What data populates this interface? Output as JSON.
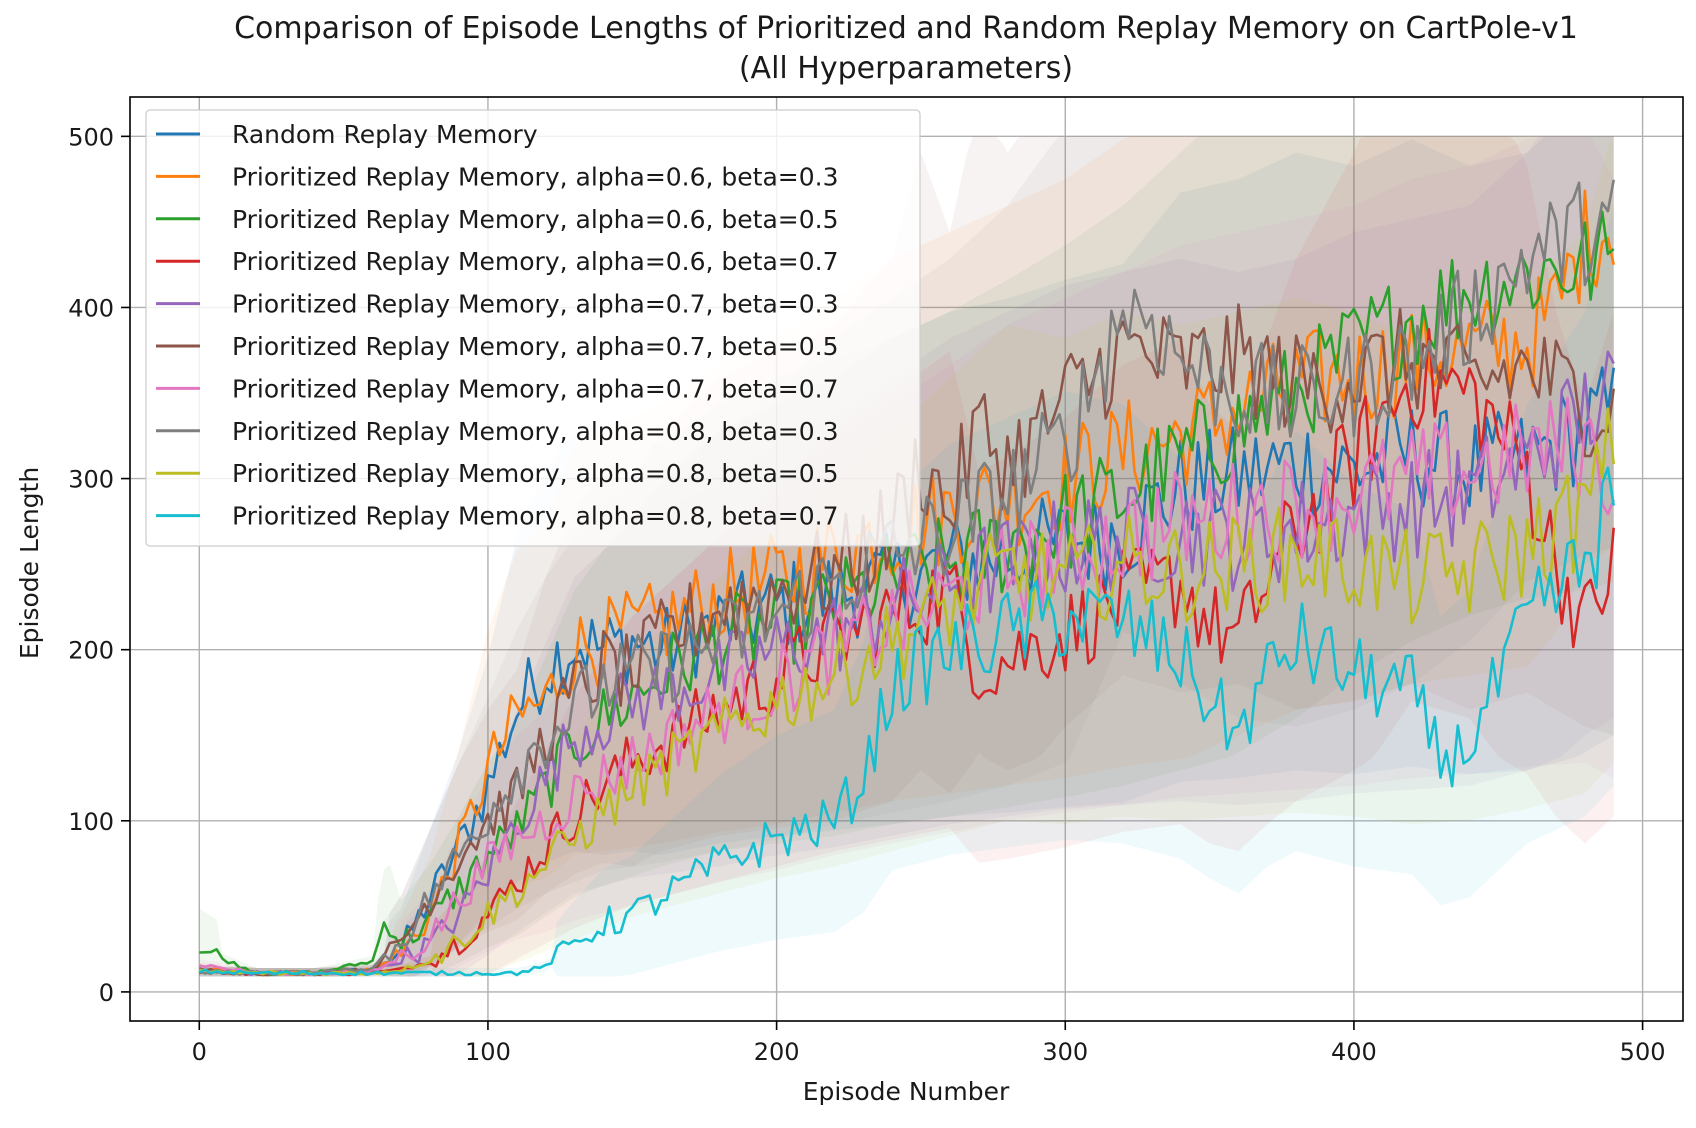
{
  "chart_data": {
    "type": "line",
    "title": "Comparison of Episode Lengths of Prioritized and Random Replay Memory on CartPole-v1",
    "subtitle": "(All Hyperparameters)",
    "xlabel": "Episode Number",
    "ylabel": "Episode Length",
    "xlim": [
      -24,
      514
    ],
    "ylim": [
      -17,
      523
    ],
    "xticks": [
      0,
      100,
      200,
      300,
      400,
      500
    ],
    "yticks": [
      0,
      100,
      200,
      300,
      400,
      500
    ],
    "grid": true,
    "legend_position": "upper-left",
    "shaded_bands": true,
    "series": [
      {
        "name": "Random Replay Memory",
        "color": "#1f77b4",
        "x": [
          0,
          20,
          40,
          60,
          70,
          80,
          90,
          100,
          110,
          120,
          130,
          140,
          150,
          160,
          180,
          200,
          220,
          240,
          260,
          280,
          300,
          320,
          340,
          360,
          380,
          400,
          420,
          440,
          460,
          480,
          490
        ],
        "y": [
          12,
          11,
          11,
          13,
          25,
          55,
          85,
          120,
          165,
          190,
          205,
          200,
          205,
          200,
          215,
          225,
          232,
          240,
          250,
          255,
          262,
          268,
          295,
          300,
          310,
          305,
          315,
          305,
          310,
          330,
          340
        ]
      },
      {
        "name": "Prioritized Replay Memory, alpha=0.6, beta=0.3",
        "color": "#ff7f0e",
        "x": [
          0,
          20,
          40,
          60,
          70,
          80,
          90,
          100,
          110,
          120,
          130,
          140,
          150,
          160,
          180,
          200,
          220,
          240,
          260,
          280,
          300,
          320,
          340,
          360,
          380,
          400,
          420,
          440,
          460,
          470,
          480,
          490
        ],
        "y": [
          14,
          11,
          11,
          13,
          22,
          45,
          85,
          130,
          160,
          170,
          200,
          205,
          210,
          215,
          230,
          240,
          255,
          270,
          280,
          290,
          300,
          315,
          325,
          340,
          355,
          360,
          370,
          375,
          380,
          400,
          440,
          450
        ]
      },
      {
        "name": "Prioritized Replay Memory, alpha=0.6, beta=0.5",
        "color": "#2ca02c",
        "x": [
          0,
          20,
          40,
          60,
          65,
          70,
          80,
          90,
          100,
          110,
          120,
          130,
          140,
          160,
          180,
          200,
          220,
          240,
          260,
          280,
          300,
          320,
          340,
          360,
          380,
          400,
          420,
          440,
          460,
          480,
          490
        ],
        "y": [
          25,
          11,
          11,
          18,
          45,
          28,
          42,
          60,
          80,
          95,
          120,
          145,
          160,
          185,
          205,
          215,
          225,
          240,
          250,
          262,
          275,
          290,
          310,
          330,
          350,
          375,
          395,
          410,
          420,
          425,
          430
        ]
      },
      {
        "name": "Prioritized Replay Memory, alpha=0.6, beta=0.7",
        "color": "#d62728",
        "x": [
          0,
          20,
          40,
          60,
          70,
          80,
          90,
          100,
          110,
          120,
          130,
          140,
          150,
          160,
          180,
          200,
          220,
          240,
          260,
          270,
          280,
          300,
          320,
          340,
          350,
          360,
          370,
          380,
          400,
          420,
          440,
          460,
          470,
          480,
          490
        ],
        "y": [
          12,
          11,
          11,
          11,
          13,
          18,
          30,
          45,
          65,
          85,
          105,
          120,
          135,
          145,
          165,
          185,
          205,
          220,
          235,
          190,
          195,
          210,
          230,
          240,
          215,
          205,
          240,
          270,
          310,
          360,
          350,
          305,
          250,
          215,
          250
        ]
      },
      {
        "name": "Prioritized Replay Memory, alpha=0.7, beta=0.3",
        "color": "#9467bd",
        "x": [
          0,
          20,
          40,
          60,
          70,
          80,
          90,
          100,
          110,
          120,
          130,
          140,
          150,
          160,
          180,
          200,
          220,
          240,
          260,
          280,
          300,
          320,
          340,
          360,
          380,
          400,
          420,
          440,
          460,
          480,
          490
        ],
        "y": [
          12,
          11,
          11,
          12,
          18,
          28,
          45,
          70,
          100,
          125,
          150,
          160,
          170,
          175,
          185,
          200,
          210,
          225,
          240,
          250,
          260,
          265,
          270,
          265,
          270,
          280,
          285,
          290,
          310,
          340,
          350
        ]
      },
      {
        "name": "Prioritized Replay Memory, alpha=0.7, beta=0.5",
        "color": "#8c564b",
        "x": [
          0,
          20,
          40,
          60,
          70,
          80,
          90,
          100,
          110,
          120,
          130,
          140,
          150,
          160,
          180,
          200,
          220,
          240,
          250,
          260,
          270,
          280,
          290,
          300,
          310,
          320,
          330,
          340,
          360,
          380,
          400,
          420,
          440,
          460,
          480,
          490
        ],
        "y": [
          13,
          11,
          11,
          13,
          30,
          55,
          80,
          100,
          115,
          150,
          175,
          190,
          185,
          205,
          225,
          235,
          245,
          270,
          310,
          280,
          330,
          310,
          325,
          345,
          360,
          375,
          370,
          365,
          370,
          355,
          360,
          370,
          355,
          365,
          345,
          340
        ]
      },
      {
        "name": "Prioritized Replay Memory, alpha=0.7, beta=0.7",
        "color": "#e377c2",
        "x": [
          0,
          20,
          40,
          60,
          70,
          80,
          90,
          100,
          110,
          120,
          130,
          140,
          150,
          160,
          180,
          200,
          220,
          240,
          260,
          280,
          300,
          320,
          340,
          360,
          380,
          400,
          420,
          440,
          460,
          480,
          490
        ],
        "y": [
          16,
          11,
          11,
          12,
          20,
          32,
          55,
          75,
          90,
          100,
          115,
          125,
          135,
          145,
          165,
          180,
          200,
          215,
          230,
          245,
          255,
          265,
          275,
          280,
          285,
          290,
          300,
          305,
          315,
          320,
          300
        ]
      },
      {
        "name": "Prioritized Replay Memory, alpha=0.8, beta=0.3",
        "color": "#7f7f7f",
        "x": [
          0,
          20,
          40,
          60,
          70,
          80,
          90,
          100,
          110,
          120,
          130,
          140,
          150,
          160,
          180,
          200,
          220,
          240,
          260,
          280,
          300,
          310,
          320,
          330,
          340,
          360,
          380,
          400,
          420,
          440,
          460,
          480,
          490
        ],
        "y": [
          12,
          11,
          11,
          14,
          30,
          55,
          80,
          105,
          130,
          150,
          165,
          180,
          185,
          190,
          205,
          220,
          240,
          255,
          270,
          290,
          320,
          360,
          400,
          395,
          370,
          350,
          345,
          355,
          370,
          395,
          430,
          445,
          450
        ]
      },
      {
        "name": "Prioritized Replay Memory, alpha=0.8, beta=0.5",
        "color": "#bcbd22",
        "x": [
          0,
          20,
          40,
          60,
          70,
          80,
          90,
          100,
          110,
          120,
          130,
          140,
          150,
          160,
          180,
          200,
          220,
          240,
          260,
          280,
          300,
          320,
          340,
          360,
          380,
          400,
          420,
          440,
          460,
          480,
          490
        ],
        "y": [
          12,
          11,
          11,
          11,
          13,
          18,
          30,
          45,
          60,
          75,
          90,
          105,
          120,
          130,
          150,
          170,
          185,
          205,
          225,
          245,
          240,
          250,
          245,
          250,
          255,
          250,
          240,
          245,
          260,
          280,
          320
        ]
      },
      {
        "name": "Prioritized Replay Memory, alpha=0.8, beta=0.7",
        "color": "#17becf",
        "x": [
          0,
          20,
          40,
          60,
          80,
          100,
          110,
          120,
          130,
          140,
          150,
          160,
          180,
          200,
          220,
          230,
          240,
          260,
          280,
          300,
          320,
          340,
          350,
          360,
          370,
          380,
          400,
          420,
          430,
          440,
          460,
          480,
          490
        ],
        "y": [
          12,
          11,
          11,
          11,
          11,
          11,
          11,
          15,
          28,
          40,
          45,
          55,
          75,
          90,
          100,
          125,
          180,
          200,
          210,
          220,
          215,
          195,
          170,
          150,
          185,
          205,
          185,
          175,
          135,
          145,
          215,
          250,
          290
        ]
      }
    ]
  }
}
